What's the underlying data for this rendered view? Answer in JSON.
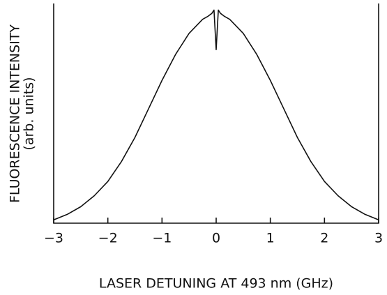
{
  "chart_data": {
    "type": "line",
    "xlabel": "LASER DETUNING AT 493 nm (GHz)",
    "ylabel": [
      "FLUORESCENCE INTENSITY",
      "(arb. units)"
    ],
    "x": [
      -3,
      -2.75,
      -2.5,
      -2.25,
      -2,
      -1.75,
      -1.5,
      -1.25,
      -1,
      -0.75,
      -0.5,
      -0.25,
      -0.15,
      -0.08,
      -0.04,
      -0.02,
      0,
      0.02,
      0.04,
      0.08,
      0.15,
      0.25,
      0.5,
      0.75,
      1,
      1.25,
      1.5,
      1.75,
      2,
      2.25,
      2.5,
      2.75,
      3
    ],
    "series": [
      {
        "color": "#111111",
        "values": [
          1.5,
          4,
          7.5,
          12.5,
          19,
          28,
          39,
          52,
          65,
          76.8,
          86.4,
          92.8,
          94.2,
          95.5,
          97,
          88,
          79,
          88,
          97,
          95.5,
          94.2,
          92.8,
          86.4,
          76.8,
          65,
          52,
          39,
          28,
          19,
          12.5,
          7.5,
          4,
          1.5
        ]
      }
    ],
    "xlim": [
      -3,
      3
    ],
    "xticks": [
      {
        "value": -3,
        "label": "−3"
      },
      {
        "value": -2,
        "label": "−2"
      },
      {
        "value": -1,
        "label": "−1"
      },
      0,
      1,
      2,
      3
    ],
    "ylim": [
      0,
      100
    ]
  }
}
